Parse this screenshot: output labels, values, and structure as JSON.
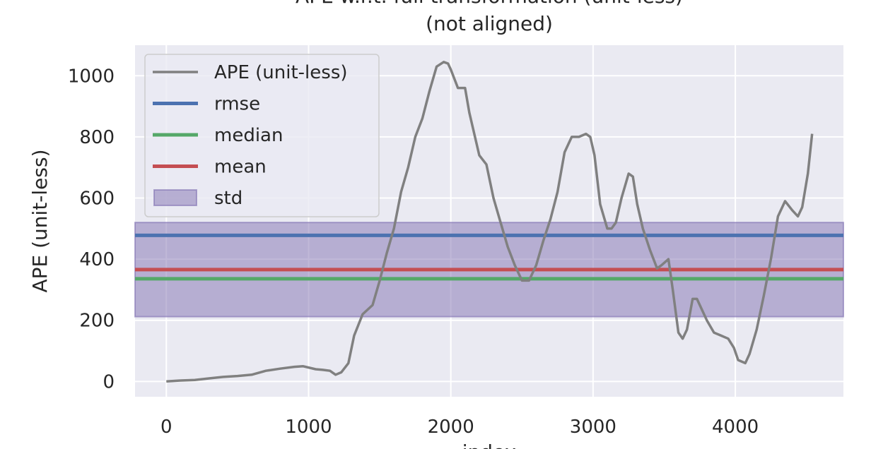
{
  "chart_data": {
    "type": "line",
    "title": "APE w.r.t. full transformation (unit-less)",
    "subtitle": "(not aligned)",
    "xlabel": "index",
    "ylabel": "APE (unit-less)",
    "xlim": [
      -220,
      4760
    ],
    "ylim": [
      -50,
      1100
    ],
    "xticks": [
      0,
      1000,
      2000,
      3000,
      4000
    ],
    "yticks": [
      0,
      200,
      400,
      600,
      800,
      1000
    ],
    "grid": true,
    "legend_position": "top-left",
    "series": [
      {
        "name": "APE (unit-less)",
        "color": "#808080",
        "x": [
          0,
          100,
          200,
          300,
          400,
          500,
          600,
          700,
          800,
          900,
          960,
          1050,
          1100,
          1150,
          1190,
          1230,
          1280,
          1320,
          1380,
          1450,
          1500,
          1550,
          1600,
          1650,
          1700,
          1750,
          1800,
          1850,
          1900,
          1950,
          1980,
          2000,
          2050,
          2100,
          2130,
          2200,
          2250,
          2300,
          2350,
          2400,
          2450,
          2500,
          2550,
          2600,
          2650,
          2700,
          2750,
          2800,
          2850,
          2900,
          2950,
          2980,
          3010,
          3050,
          3100,
          3130,
          3160,
          3200,
          3250,
          3280,
          3310,
          3350,
          3400,
          3450,
          3480,
          3530,
          3560,
          3600,
          3630,
          3660,
          3700,
          3730,
          3760,
          3800,
          3850,
          3900,
          3950,
          3990,
          4020,
          4070,
          4100,
          4150,
          4200,
          4250,
          4300,
          4350,
          4400,
          4440,
          4470,
          4510,
          4540
        ],
        "y": [
          0,
          3,
          5,
          10,
          15,
          18,
          22,
          35,
          42,
          48,
          50,
          40,
          38,
          35,
          22,
          30,
          60,
          150,
          220,
          250,
          330,
          420,
          500,
          620,
          700,
          800,
          860,
          950,
          1030,
          1045,
          1040,
          1020,
          960,
          960,
          880,
          740,
          710,
          600,
          520,
          440,
          380,
          330,
          330,
          380,
          460,
          530,
          620,
          750,
          800,
          800,
          810,
          800,
          740,
          580,
          500,
          500,
          520,
          600,
          680,
          670,
          580,
          500,
          430,
          370,
          380,
          400,
          300,
          160,
          140,
          170,
          270,
          270,
          240,
          200,
          160,
          150,
          140,
          110,
          70,
          60,
          90,
          170,
          280,
          400,
          540,
          590,
          560,
          540,
          570,
          680,
          810
        ]
      },
      {
        "name": "rmse",
        "color": "#4c72b0",
        "y": 478
      },
      {
        "name": "median",
        "color": "#55a868",
        "y": 336
      },
      {
        "name": "mean",
        "color": "#c44e52",
        "y": 366
      },
      {
        "name": "std",
        "color": "#8172b2",
        "y": [
          212,
          520
        ]
      }
    ]
  }
}
